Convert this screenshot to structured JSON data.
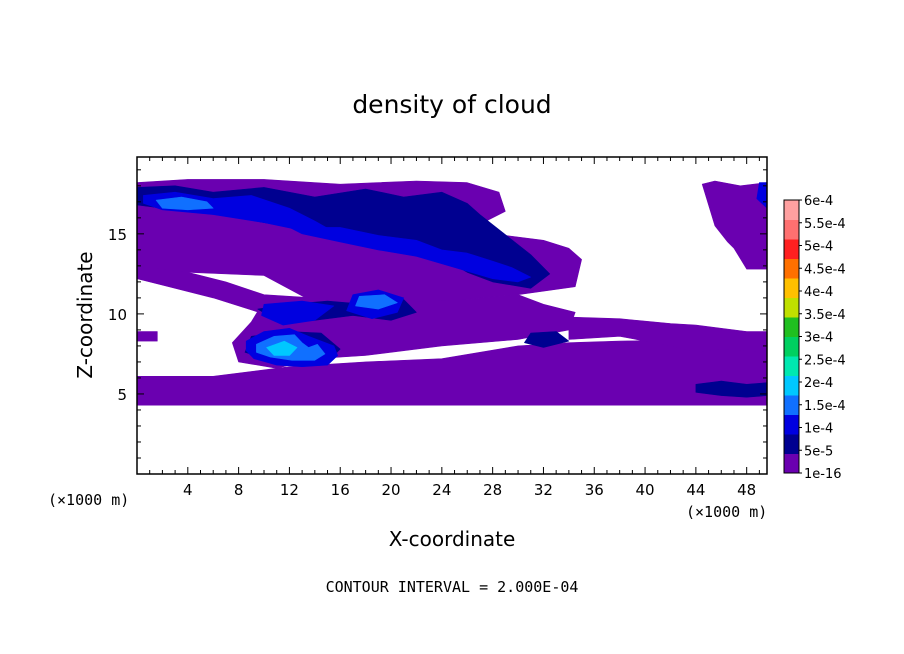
{
  "chart_data": {
    "type": "heatmap",
    "title": "density of cloud",
    "xlabel": "X-coordinate",
    "ylabel": "Z-coordinate",
    "x_unit": "(×1000 m)",
    "y_unit": "(×1000 m)",
    "xlim": [
      0,
      49.6
    ],
    "ylim": [
      0,
      19.8
    ],
    "xticks": [
      4,
      8,
      12,
      16,
      20,
      24,
      28,
      32,
      36,
      40,
      44,
      48
    ],
    "yticks": [
      5,
      10,
      15
    ],
    "footer": "CONTOUR INTERVAL = 2.000E-04",
    "colorbar": {
      "labels": [
        "1e-16",
        "5e-5",
        "1e-4",
        "1.5e-4",
        "2e-4",
        "2.5e-4",
        "3e-4",
        "3.5e-4",
        "4e-4",
        "4.5e-4",
        "5e-4",
        "5.5e-4",
        "6e-4"
      ],
      "colors": [
        "#6a00b0",
        "#000090",
        "#0000e0",
        "#1070ff",
        "#00c8ff",
        "#00e8b0",
        "#00d060",
        "#20c020",
        "#c0e000",
        "#ffc000",
        "#ff7000",
        "#ff2020",
        "#ff7070",
        "#ffa0a0"
      ]
    },
    "levels": [
      {
        "level": "1e-16",
        "regions": [
          {
            "x": [
              0,
              4,
              10,
              16,
              22,
              26,
              28.5,
              29,
              27,
              29,
              32,
              34,
              35,
              34.5,
              30,
              26,
              22,
              18,
              14,
              10,
              4,
              0
            ],
            "y": [
              18.2,
              18.4,
              18.4,
              18.1,
              18.3,
              18.2,
              17.6,
              16.4,
              15.6,
              14.9,
              14.6,
              14.1,
              13.4,
              11.7,
              11.2,
              10.9,
              10.6,
              10.4,
              10.7,
              12.4,
              12.6,
              12.6
            ]
          },
          {
            "x": [
              0,
              6,
              12,
              18,
              24,
              30,
              34,
              38,
              44,
              49.6,
              49.6,
              44,
              38,
              32,
              24,
              18,
              12,
              6,
              0
            ],
            "y": [
              6.1,
              6.1,
              6.7,
              7.0,
              7.2,
              8.0,
              8.2,
              8.3,
              8.4,
              8.8,
              4.3,
              4.3,
              4.3,
              4.3,
              4.3,
              4.3,
              4.3,
              4.3,
              4.3
            ]
          },
          {
            "x": [
              10,
              14,
              20,
              26,
              30,
              32,
              34.5,
              34,
              30,
              24,
              18,
              14,
              11,
              8,
              7.5,
              9
            ],
            "y": [
              10.8,
              10.7,
              10.7,
              10.9,
              11.2,
              10.6,
              10.1,
              9.0,
              8.4,
              8.0,
              7.4,
              7.2,
              6.6,
              7.0,
              8.2,
              9.5
            ]
          },
          {
            "x": [
              34,
              38,
              42,
              44,
              48,
              49.6,
              49.6,
              46,
              44,
              42,
              38,
              34
            ],
            "y": [
              9.8,
              9.7,
              9.4,
              9.3,
              8.9,
              8.9,
              7.6,
              7.8,
              7.6,
              8.0,
              8.6,
              8.4
            ]
          },
          {
            "x": [
              0,
              4,
              7,
              10,
              14,
              18,
              20,
              16,
              10,
              6,
              2,
              0
            ],
            "y": [
              13.0,
              12.6,
              12.0,
              11.2,
              11.0,
              10.6,
              10.2,
              9.8,
              10.0,
              11.0,
              11.8,
              12.2
            ]
          },
          {
            "x": [
              44.5,
              45.5,
              47.5,
              49.6,
              49.6,
              48,
              47,
              46.5,
              45.5
            ],
            "y": [
              18.1,
              18.3,
              18.0,
              18.2,
              12.8,
              12.8,
              14.1,
              14.5,
              15.5
            ]
          },
          {
            "x": [
              0,
              1.6,
              1.6,
              0
            ],
            "y": [
              8.9,
              8.9,
              8.3,
              8.3
            ]
          }
        ]
      },
      {
        "level": "5e-5",
        "regions": [
          {
            "x": [
              0,
              3,
              6,
              10,
              14,
              18,
              21,
              24,
              26,
              27,
              31,
              32.5,
              31,
              28,
              26,
              24,
              22,
              20,
              18,
              16,
              13,
              10,
              6,
              2,
              0
            ],
            "y": [
              17.9,
              18.0,
              17.6,
              17.9,
              17.3,
              17.8,
              17.3,
              17.6,
              16.9,
              16.2,
              13.7,
              12.5,
              11.6,
              12.0,
              12.6,
              13.5,
              14.1,
              14.2,
              14.6,
              15.0,
              15.3,
              15.7,
              16.3,
              16.6,
              16.8
            ]
          },
          {
            "x": [
              9,
              12,
              14.5,
              16,
              15,
              13,
              11,
              8.5
            ],
            "y": [
              8.6,
              8.9,
              8.8,
              7.8,
              7.0,
              6.8,
              7.0,
              7.6
            ]
          },
          {
            "x": [
              9.5,
              12,
              15,
              18,
              21,
              22,
              20,
              17,
              14,
              11
            ],
            "y": [
              10.3,
              10.6,
              10.8,
              10.6,
              10.9,
              10.1,
              9.6,
              9.9,
              9.6,
              9.6
            ]
          },
          {
            "x": [
              31,
              33,
              34,
              32,
              30.5
            ],
            "y": [
              8.8,
              8.9,
              8.3,
              7.9,
              8.2
            ]
          },
          {
            "x": [
              44,
              46,
              48,
              49.6,
              49.6,
              48,
              46,
              44
            ],
            "y": [
              5.6,
              5.8,
              5.6,
              5.7,
              4.9,
              4.8,
              4.9,
              5.1
            ]
          }
        ]
      },
      {
        "level": "1e-4",
        "regions": [
          {
            "x": [
              0.5,
              3,
              6,
              9,
              12,
              14,
              16,
              13,
              10,
              6,
              2,
              0.5
            ],
            "y": [
              17.4,
              17.6,
              17.2,
              17.4,
              16.6,
              15.8,
              14.9,
              15.2,
              15.7,
              16.2,
              16.5,
              16.9
            ]
          },
          {
            "x": [
              12,
              16,
              19,
              22,
              24,
              26,
              28,
              29.5,
              31,
              30,
              28,
              25,
              22,
              19,
              16,
              13
            ],
            "y": [
              15.4,
              15.4,
              14.9,
              14.6,
              14.0,
              13.8,
              13.3,
              12.9,
              12.3,
              12.0,
              12.2,
              12.9,
              13.6,
              14.0,
              14.5,
              15.0
            ]
          },
          {
            "x": [
              17,
              19,
              21,
              20.5,
              18.5,
              16.5
            ],
            "y": [
              11.2,
              11.5,
              11.0,
              10.1,
              9.7,
              10.2
            ]
          },
          {
            "x": [
              10,
              13,
              15.5,
              14,
              11.5,
              9.8
            ],
            "y": [
              10.6,
              10.8,
              10.5,
              9.6,
              9.3,
              9.9
            ]
          },
          {
            "x": [
              8.6,
              10,
              12,
              13.5,
              15.5,
              15.8,
              15,
              13,
              11,
              9.2,
              8.6
            ],
            "y": [
              8.3,
              8.9,
              9.1,
              8.6,
              8.0,
              7.4,
              6.8,
              6.7,
              6.8,
              7.2,
              7.7
            ]
          },
          {
            "x": [
              49,
              49.6,
              49.6,
              48.8
            ],
            "y": [
              18.2,
              18.2,
              16.6,
              17.2
            ]
          }
        ]
      },
      {
        "level": "1.5e-4",
        "regions": [
          {
            "x": [
              9.4,
              10.8,
              12.4,
              13,
              13.5,
              14.2,
              14.8,
              14.0,
              12.2,
              10.5,
              9.4
            ],
            "y": [
              8.1,
              8.6,
              8.7,
              8.2,
              7.9,
              8.1,
              7.5,
              7.1,
              7.1,
              7.3,
              7.6
            ]
          },
          {
            "x": [
              1.5,
              3.5,
              5.5,
              6,
              4,
              2
            ],
            "y": [
              17.1,
              17.3,
              17.0,
              16.6,
              16.5,
              16.6
            ]
          },
          {
            "x": [
              17.5,
              19.5,
              20.5,
              19,
              17.2
            ],
            "y": [
              11.1,
              11.2,
              10.7,
              10.3,
              10.5
            ]
          }
        ]
      },
      {
        "level": "2e-4",
        "regions": [
          {
            "x": [
              10.2,
              11.6,
              12.6,
              12.0,
              10.8
            ],
            "y": [
              7.9,
              8.3,
              7.9,
              7.4,
              7.4
            ]
          }
        ]
      }
    ]
  }
}
